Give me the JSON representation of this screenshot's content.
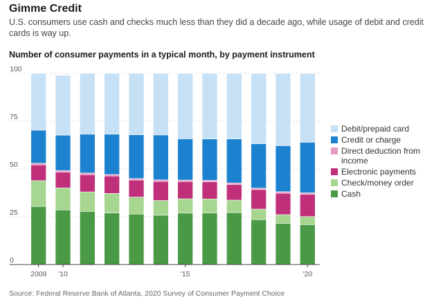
{
  "header": {
    "title": "Gimme Credit",
    "subtitle": "U.S. consumers use cash and checks much less than they did a decade ago, while usage of debit and credit cards is way up."
  },
  "source": "Source: Federal Reserve Bank of Atlanta, 2020 Survey of Consumer Payment Choice",
  "chart_data": {
    "type": "bar",
    "stacked": true,
    "title": "Number of consumer payments in a typical month, by payment instrument",
    "xlabel": "",
    "ylabel": "",
    "ylim": [
      0,
      100
    ],
    "yticks": [
      0,
      25,
      50,
      75,
      100
    ],
    "ytick_labels": [
      "0",
      "25",
      "50",
      "75",
      "100"
    ],
    "categories": [
      "2009",
      "2010",
      "2011",
      "2012",
      "2013",
      "2014",
      "2015",
      "2016",
      "2017",
      "2018",
      "2019",
      "2020"
    ],
    "x_tick_labels": [
      "2009",
      "'10",
      "",
      "",
      "",
      "",
      "'15",
      "",
      "",
      "",
      "",
      "'20"
    ],
    "grid": true,
    "legend_position": "right",
    "series": [
      {
        "name": "Cash",
        "color": "#4a9a45",
        "values": [
          30.4,
          28.6,
          27.8,
          27.0,
          26.4,
          25.8,
          26.9,
          27.0,
          27.2,
          23.5,
          21.6,
          20.9
        ]
      },
      {
        "name": "Check/money order",
        "color": "#a6d68f",
        "values": [
          13.5,
          11.5,
          10.2,
          10.2,
          8.9,
          7.7,
          7.5,
          7.3,
          6.5,
          5.5,
          4.5,
          4.2
        ]
      },
      {
        "name": "Electronic payments",
        "color": "#c0307a",
        "values": [
          8.2,
          8.2,
          9.0,
          9.1,
          8.9,
          10.0,
          9.0,
          9.0,
          8.2,
          10.2,
          11.2,
          11.6
        ]
      },
      {
        "name": "Direct deduction from income",
        "color": "#e59ac4",
        "values": [
          0.9,
          0.9,
          0.9,
          0.8,
          0.8,
          0.8,
          0.8,
          0.8,
          0.8,
          0.8,
          0.8,
          0.8
        ]
      },
      {
        "name": "Credit or charge",
        "color": "#1c82cf",
        "values": [
          17.3,
          18.5,
          20.3,
          21.1,
          22.9,
          23.5,
          21.6,
          21.6,
          23.0,
          23.2,
          24.1,
          26.5
        ]
      },
      {
        "name": "Debit/prepaid card",
        "color": "#c6e0f5",
        "values": [
          29.7,
          31.3,
          31.8,
          31.8,
          32.1,
          32.2,
          34.2,
          34.3,
          34.3,
          36.8,
          37.8,
          36.0
        ]
      }
    ],
    "legend_order": [
      "Debit/prepaid card",
      "Credit or charge",
      "Direct deduction from income",
      "Electronic payments",
      "Check/money order",
      "Cash"
    ],
    "legend_label_lines": {
      "Direct deduction from income": [
        "Direct deduction from",
        "income"
      ]
    }
  }
}
